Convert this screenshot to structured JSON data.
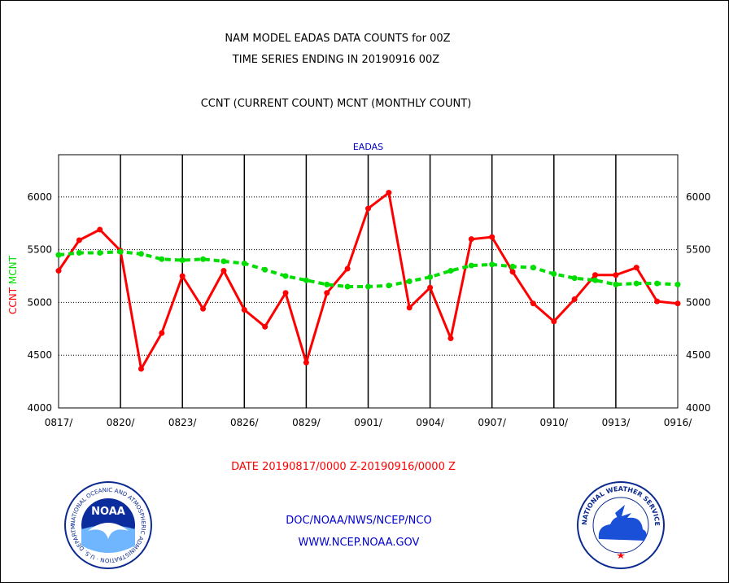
{
  "header": {
    "title_line1": "NAM MODEL EADAS DATA COUNTS for 00Z",
    "title_line2": "TIME SERIES ENDING IN 20190916 00Z",
    "subtitle": "CCNT (CURRENT COUNT) MCNT (MONTHLY COUNT)"
  },
  "footer": {
    "date_range": "DATE 20190817/0000 Z-20190916/0000 Z",
    "org_line": "DOC/NOAA/NWS/NCEP/NCO",
    "url_line": "WWW.NCEP.NOAA.GOV"
  },
  "logos": {
    "noaa_text": "NOAA",
    "noaa_ring_text": "NATIONAL OCEANIC AND ATMOSPHERIC ADMINISTRATION · U.S. DEPARTMENT OF COMMERCE",
    "nws_ring_text": "NATIONAL WEATHER SERVICE"
  },
  "colors": {
    "ccnt": "#ff0000",
    "mcnt": "#00dd00",
    "plot_title": "#0000cc",
    "grid": "#000000"
  },
  "chart_data": {
    "type": "line",
    "title": "EADAS",
    "ylabel_left": [
      "CCNT",
      "MCNT"
    ],
    "ylim": [
      4000,
      6400
    ],
    "yticks": [
      4000,
      4500,
      5000,
      5500,
      6000
    ],
    "xlim": [
      0,
      30
    ],
    "xticks": [
      0,
      3,
      6,
      9,
      12,
      15,
      18,
      21,
      24,
      27,
      30
    ],
    "xticklabels": [
      "0817/",
      "0820/",
      "0823/",
      "0826/",
      "0829/",
      "0901/",
      "0904/",
      "0907/",
      "0910/",
      "0913/",
      "0916/"
    ],
    "grid": true,
    "series": [
      {
        "name": "CCNT",
        "color": "#ff0000",
        "style": "solid",
        "x": [
          0,
          1,
          2,
          3,
          4,
          5,
          6,
          7,
          8,
          9,
          10,
          11,
          12,
          13,
          14,
          15,
          16,
          17,
          18,
          19,
          20,
          21,
          22,
          23,
          24,
          25,
          26,
          27,
          28,
          29,
          30
        ],
        "values": [
          5300,
          5590,
          5690,
          5490,
          4370,
          4710,
          5250,
          4940,
          5300,
          4930,
          4770,
          5090,
          4430,
          5090,
          5320,
          5890,
          6040,
          4950,
          5140,
          4660,
          5600,
          5620,
          5290,
          4990,
          4820,
          5030,
          5260,
          5260,
          5330,
          5010,
          4990
        ]
      },
      {
        "name": "MCNT",
        "color": "#00dd00",
        "style": "dashed",
        "x": [
          0,
          1,
          2,
          3,
          4,
          5,
          6,
          7,
          8,
          9,
          10,
          11,
          12,
          13,
          14,
          15,
          16,
          17,
          18,
          19,
          20,
          21,
          22,
          23,
          24,
          25,
          26,
          27,
          28,
          29,
          30
        ],
        "values": [
          5450,
          5470,
          5470,
          5480,
          5460,
          5410,
          5400,
          5410,
          5390,
          5370,
          5310,
          5250,
          5210,
          5170,
          5150,
          5150,
          5160,
          5200,
          5240,
          5300,
          5350,
          5360,
          5340,
          5330,
          5270,
          5230,
          5210,
          5170,
          5180,
          5180,
          5170
        ]
      }
    ]
  }
}
